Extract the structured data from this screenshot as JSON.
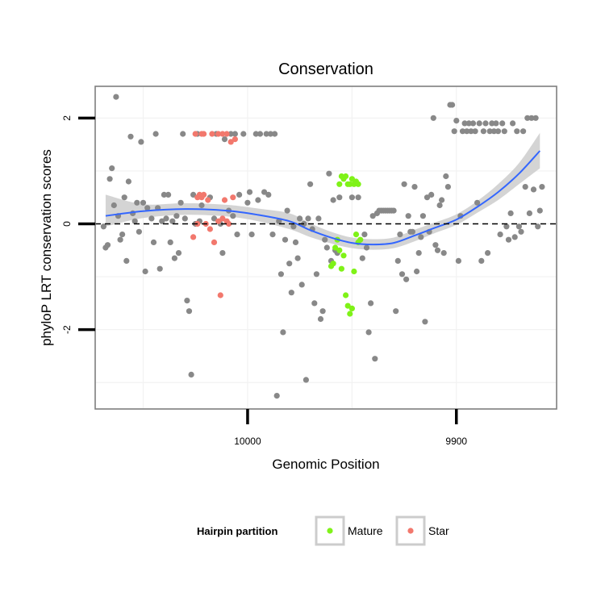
{
  "chart_data": {
    "type": "scatter",
    "title": "Conservation",
    "xlabel": "Genomic Position",
    "ylabel": "phyloP LRT conservation scores",
    "x_reversed": true,
    "xlim": [
      10073,
      9852
    ],
    "ylim": [
      -3.5,
      2.6
    ],
    "x_ticks": [
      10000,
      9900
    ],
    "y_ticks": [
      -2,
      0,
      2
    ],
    "grid": true,
    "reference_line": {
      "y": 0,
      "style": "dashed",
      "color": "#000000"
    },
    "legend": {
      "title": "Hairpin partition",
      "position": "bottom",
      "entries": [
        {
          "label": "Mature",
          "color": "#80f21a"
        },
        {
          "label": "Star",
          "color": "#f2786d"
        }
      ]
    },
    "colors": {
      "other": "#888888",
      "Mature": "#7ff217",
      "Star": "#f2786d",
      "smooth_line": "#3366ff",
      "confidence_band": "#cccccc",
      "panel_border": "#7f7f7f",
      "grid": "#f2f2f2"
    },
    "smooth": {
      "x": [
        10068,
        10050,
        10030,
        10010,
        9995,
        9980,
        9970,
        9960,
        9950,
        9940,
        9930,
        9920,
        9910,
        9900,
        9890,
        9880,
        9870,
        9860
      ],
      "y": [
        0.15,
        0.24,
        0.28,
        0.25,
        0.17,
        0.05,
        -0.12,
        -0.26,
        -0.36,
        -0.39,
        -0.36,
        -0.22,
        -0.07,
        0.08,
        0.32,
        0.6,
        0.95,
        1.38
      ],
      "lower": [
        -0.05,
        0.11,
        0.17,
        0.14,
        0.05,
        -0.1,
        -0.25,
        -0.37,
        -0.46,
        -0.49,
        -0.46,
        -0.33,
        -0.17,
        -0.02,
        0.21,
        0.45,
        0.75,
        1.05
      ],
      "upper": [
        0.55,
        0.37,
        0.39,
        0.36,
        0.29,
        0.2,
        0.01,
        -0.15,
        -0.26,
        -0.29,
        -0.26,
        -0.11,
        0.03,
        0.18,
        0.43,
        0.75,
        1.15,
        1.72
      ]
    },
    "series": [
      {
        "group": "other",
        "points": [
          [
            10069,
            -0.05
          ],
          [
            10068,
            -0.45
          ],
          [
            10067,
            -0.4
          ],
          [
            10066,
            0.85
          ],
          [
            10065,
            1.05
          ],
          [
            10064,
            0.35
          ],
          [
            10063,
            2.4
          ],
          [
            10062,
            0.15
          ],
          [
            10061,
            -0.3
          ],
          [
            10060,
            -0.2
          ],
          [
            10059,
            0.5
          ],
          [
            10058,
            -0.7
          ],
          [
            10057,
            0.8
          ],
          [
            10056,
            1.65
          ],
          [
            10055,
            0.2
          ],
          [
            10054,
            0.05
          ],
          [
            10053,
            0.4
          ],
          [
            10052,
            -0.15
          ],
          [
            10051,
            1.55
          ],
          [
            10050,
            0.4
          ],
          [
            10049,
            -0.9
          ],
          [
            10048,
            0.3
          ],
          [
            10046,
            0.1
          ],
          [
            10045,
            -0.35
          ],
          [
            10044,
            1.7
          ],
          [
            10043,
            0.3
          ],
          [
            10042,
            -0.85
          ],
          [
            10041,
            0.05
          ],
          [
            10040,
            0.55
          ],
          [
            10039,
            0.1
          ],
          [
            10038,
            0.55
          ],
          [
            10037,
            -0.35
          ],
          [
            10036,
            0.05
          ],
          [
            10035,
            -0.65
          ],
          [
            10034,
            0.15
          ],
          [
            10033,
            -0.55
          ],
          [
            10032,
            0.4
          ],
          [
            10031,
            1.7
          ],
          [
            10030,
            0.1
          ],
          [
            10029,
            -1.45
          ],
          [
            10028,
            -1.65
          ],
          [
            10027,
            -2.85
          ],
          [
            10026,
            0.55
          ],
          [
            10025,
            0.0
          ],
          [
            10024,
            1.7
          ],
          [
            10023,
            0.05
          ],
          [
            10022,
            0.35
          ],
          [
            10018,
            0.5
          ],
          [
            10016,
            0.1
          ],
          [
            10015,
            1.7
          ],
          [
            10013,
            0.0
          ],
          [
            10012,
            -0.55
          ],
          [
            10011,
            1.6
          ],
          [
            10009,
            0.25
          ],
          [
            10008,
            1.7
          ],
          [
            10007,
            0.15
          ],
          [
            10006,
            1.7
          ],
          [
            10005,
            -0.2
          ],
          [
            10004,
            0.55
          ],
          [
            10002,
            1.7
          ],
          [
            10000,
            0.4
          ],
          [
            9999,
            0.6
          ],
          [
            9998,
            -0.2
          ],
          [
            9996,
            1.7
          ],
          [
            9995,
            0.45
          ],
          [
            9994,
            1.7
          ],
          [
            9992,
            0.6
          ],
          [
            9991,
            1.7
          ],
          [
            9990,
            0.55
          ],
          [
            9989,
            1.7
          ],
          [
            9988,
            -0.2
          ],
          [
            9987,
            1.7
          ],
          [
            9986,
            -3.25
          ],
          [
            9985,
            0.05
          ],
          [
            9984,
            -0.95
          ],
          [
            9983,
            -2.05
          ],
          [
            9982,
            -0.3
          ],
          [
            9981,
            0.25
          ],
          [
            9980,
            -0.75
          ],
          [
            9979,
            -1.3
          ],
          [
            9978,
            -0.05
          ],
          [
            9977,
            -0.35
          ],
          [
            9976,
            -0.65
          ],
          [
            9975,
            0.1
          ],
          [
            9974,
            -1.15
          ],
          [
            9973,
            0.0
          ],
          [
            9972,
            -2.95
          ],
          [
            9971,
            0.1
          ],
          [
            9970,
            0.75
          ],
          [
            9969,
            -0.1
          ],
          [
            9968,
            -1.5
          ],
          [
            9967,
            -0.95
          ],
          [
            9966,
            0.1
          ],
          [
            9965,
            -1.8
          ],
          [
            9964,
            -1.65
          ],
          [
            9963,
            -0.3
          ],
          [
            9962,
            -0.45
          ],
          [
            9961,
            0.95
          ],
          [
            9960,
            -0.7
          ],
          [
            9959,
            0.45
          ],
          [
            9958,
            -0.5
          ],
          [
            9957,
            -0.55
          ],
          [
            9956,
            0.5
          ],
          [
            9950,
            0.5
          ],
          [
            9947,
            0.5
          ],
          [
            9945,
            -0.65
          ],
          [
            9944,
            -0.2
          ],
          [
            9943,
            -0.45
          ],
          [
            9942,
            -2.05
          ],
          [
            9941,
            -1.5
          ],
          [
            9940,
            0.15
          ],
          [
            9939,
            -2.55
          ],
          [
            9938,
            0.2
          ],
          [
            9937,
            0.25
          ],
          [
            9936,
            0.25
          ],
          [
            9935,
            0.25
          ],
          [
            9934,
            0.25
          ],
          [
            9933,
            0.25
          ],
          [
            9932,
            0.25
          ],
          [
            9931,
            0.25
          ],
          [
            9930,
            0.25
          ],
          [
            9929,
            -1.65
          ],
          [
            9928,
            -0.7
          ],
          [
            9927,
            -0.2
          ],
          [
            9926,
            -0.95
          ],
          [
            9925,
            0.75
          ],
          [
            9924,
            -1.05
          ],
          [
            9923,
            0.15
          ],
          [
            9922,
            -0.15
          ],
          [
            9921,
            -0.15
          ],
          [
            9920,
            0.7
          ],
          [
            9919,
            -0.9
          ],
          [
            9918,
            -0.55
          ],
          [
            9917,
            -0.25
          ],
          [
            9916,
            0.15
          ],
          [
            9915,
            -1.85
          ],
          [
            9914,
            0.5
          ],
          [
            9913,
            -0.15
          ],
          [
            9912,
            0.55
          ],
          [
            9911,
            2.0
          ],
          [
            9910,
            -0.4
          ],
          [
            9909,
            -0.5
          ],
          [
            9908,
            0.35
          ],
          [
            9907,
            0.45
          ],
          [
            9906,
            -0.55
          ],
          [
            9905,
            0.9
          ],
          [
            9904,
            0.7
          ],
          [
            9903,
            2.25
          ],
          [
            9902,
            2.25
          ],
          [
            9901,
            1.75
          ],
          [
            9900,
            1.95
          ],
          [
            9899,
            -0.7
          ],
          [
            9898,
            0.15
          ],
          [
            9897,
            1.75
          ],
          [
            9896,
            1.9
          ],
          [
            9895,
            1.75
          ],
          [
            9894,
            1.9
          ],
          [
            9893,
            1.75
          ],
          [
            9892,
            1.9
          ],
          [
            9891,
            1.75
          ],
          [
            9890,
            0.4
          ],
          [
            9889,
            1.9
          ],
          [
            9888,
            -0.7
          ],
          [
            9887,
            1.75
          ],
          [
            9886,
            1.9
          ],
          [
            9885,
            -0.55
          ],
          [
            9884,
            1.75
          ],
          [
            9883,
            1.9
          ],
          [
            9882,
            1.75
          ],
          [
            9881,
            1.9
          ],
          [
            9880,
            1.75
          ],
          [
            9879,
            -0.2
          ],
          [
            9878,
            1.9
          ],
          [
            9877,
            1.75
          ],
          [
            9876,
            -0.05
          ],
          [
            9875,
            -0.3
          ],
          [
            9874,
            0.2
          ],
          [
            9873,
            1.9
          ],
          [
            9872,
            -0.25
          ],
          [
            9871,
            1.75
          ],
          [
            9870,
            -0.05
          ],
          [
            9869,
            -0.15
          ],
          [
            9868,
            1.75
          ],
          [
            9867,
            0.7
          ],
          [
            9866,
            2.0
          ],
          [
            9865,
            0.2
          ],
          [
            9864,
            2.0
          ],
          [
            9863,
            0.65
          ],
          [
            9862,
            2.0
          ],
          [
            9861,
            -0.05
          ],
          [
            9860,
            0.25
          ],
          [
            9859,
            0.7
          ]
        ]
      },
      {
        "group": "Mature",
        "points": [
          [
            9956,
            0.75
          ],
          [
            9955,
            0.9
          ],
          [
            9954,
            0.85
          ],
          [
            9953,
            0.9
          ],
          [
            9952,
            0.75
          ],
          [
            9951,
            0.75
          ],
          [
            9950,
            0.85
          ],
          [
            9949,
            0.75
          ],
          [
            9948,
            0.8
          ],
          [
            9947,
            0.75
          ],
          [
            9946,
            -0.3
          ],
          [
            9958,
            -0.45
          ],
          [
            9957,
            -0.3
          ],
          [
            9956,
            -0.5
          ],
          [
            9955,
            -0.85
          ],
          [
            9954,
            -0.6
          ],
          [
            9953,
            -1.35
          ],
          [
            9952,
            -1.55
          ],
          [
            9951,
            -1.7
          ],
          [
            9950,
            -1.6
          ],
          [
            9949,
            -0.9
          ],
          [
            9948,
            -0.2
          ],
          [
            9947,
            -0.35
          ],
          [
            9959,
            -0.75
          ],
          [
            9960,
            -0.8
          ]
        ]
      },
      {
        "group": "Star",
        "points": [
          [
            10025,
            1.7
          ],
          [
            10022,
            1.7
          ],
          [
            10021,
            1.7
          ],
          [
            10017,
            1.7
          ],
          [
            10014,
            1.7
          ],
          [
            10012,
            1.7
          ],
          [
            10010,
            1.7
          ],
          [
            10008,
            1.55
          ],
          [
            10006,
            1.6
          ],
          [
            10024,
            0.5
          ],
          [
            10023,
            0.55
          ],
          [
            10022,
            0.5
          ],
          [
            10021,
            0.55
          ],
          [
            10019,
            0.45
          ],
          [
            10024,
            0.0
          ],
          [
            10020,
            0.0
          ],
          [
            10018,
            -0.1
          ],
          [
            10014,
            0.05
          ],
          [
            10012,
            0.1
          ],
          [
            10010,
            0.05
          ],
          [
            10011,
            0.45
          ],
          [
            10007,
            0.5
          ],
          [
            10009,
            0.0
          ],
          [
            10016,
            -0.35
          ],
          [
            10013,
            -1.35
          ],
          [
            10026,
            -0.25
          ]
        ]
      }
    ]
  }
}
